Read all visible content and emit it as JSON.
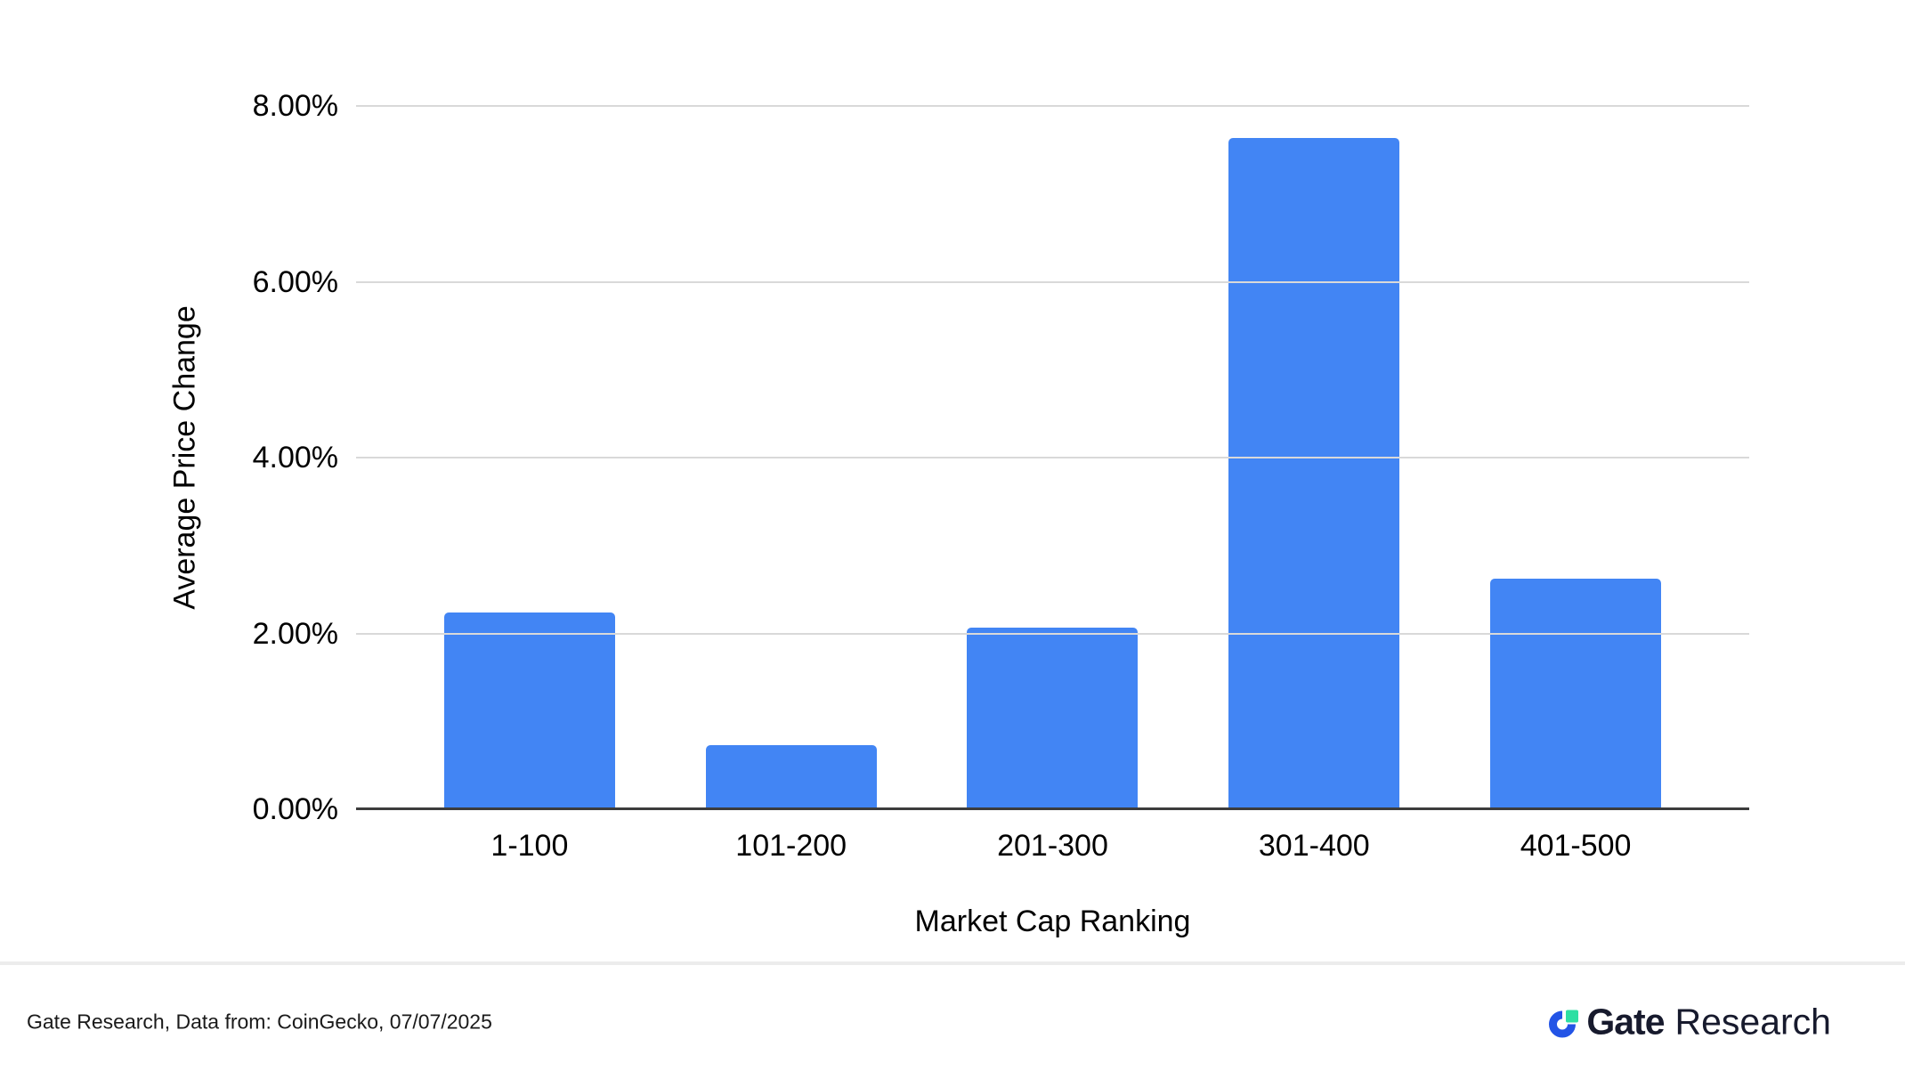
{
  "chart_data": {
    "type": "bar",
    "title": "",
    "categories": [
      "1-100",
      "101-200",
      "201-300",
      "301-400",
      "401-500"
    ],
    "values": [
      2.24,
      0.73,
      2.07,
      7.64,
      2.62
    ],
    "xlabel": "Market Cap Ranking",
    "ylabel": "Average Price Change",
    "ylim": [
      0,
      8
    ],
    "y_ticks": [
      {
        "value": 0,
        "label": "0.00%"
      },
      {
        "value": 2,
        "label": "2.00%"
      },
      {
        "value": 4,
        "label": "4.00%"
      },
      {
        "value": 6,
        "label": "6.00%"
      },
      {
        "value": 8,
        "label": "8.00%"
      }
    ],
    "grid": true,
    "legend": "none",
    "bar_color": "#4285F4",
    "gridline_color": "#d9d9d9",
    "axis_color": "#3c3c3c"
  },
  "footer": {
    "source_text": "Gate Research, Data from: CoinGecko, 07/07/2025",
    "logo": {
      "brand_bold": "Gate",
      "brand_regular": "Research",
      "blue": "#2354E6",
      "green": "#2EDFA3",
      "navy": "#171A2D"
    }
  }
}
